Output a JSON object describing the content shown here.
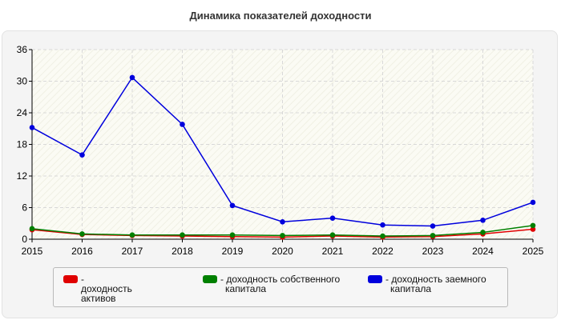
{
  "chart_data": {
    "type": "line",
    "title": "Динамика показателей доходности",
    "xlabel": "",
    "ylabel": "",
    "categories": [
      "2015",
      "2016",
      "2017",
      "2018",
      "2019",
      "2020",
      "2021",
      "2022",
      "2023",
      "2024",
      "2025"
    ],
    "ylim": [
      0,
      36
    ],
    "yticks": [
      0,
      6,
      12,
      18,
      24,
      30,
      36
    ],
    "grid": true,
    "legend_position": "bottom",
    "series": [
      {
        "name": "доходность активов",
        "color": "#e00000",
        "values": [
          1.8,
          0.9,
          0.7,
          0.6,
          0.5,
          0.4,
          0.6,
          0.4,
          0.5,
          1.0,
          1.9
        ]
      },
      {
        "name": "доходность собственного капитала",
        "color": "#008000",
        "values": [
          2.0,
          1.0,
          0.8,
          0.8,
          0.8,
          0.7,
          0.8,
          0.6,
          0.7,
          1.3,
          2.6
        ]
      },
      {
        "name": "доходность заемного капитала",
        "color": "#0000dd",
        "values": [
          21.2,
          16.0,
          30.7,
          21.8,
          6.4,
          3.3,
          4.0,
          2.7,
          2.5,
          3.6,
          7.0
        ]
      }
    ]
  },
  "legend": {
    "items": [
      {
        "lines": [
          "- доходность активов"
        ]
      },
      {
        "lines": [
          "- доходность собственного",
          "капитала"
        ]
      },
      {
        "lines": [
          "- доходность заемного",
          "капитала"
        ]
      }
    ]
  }
}
